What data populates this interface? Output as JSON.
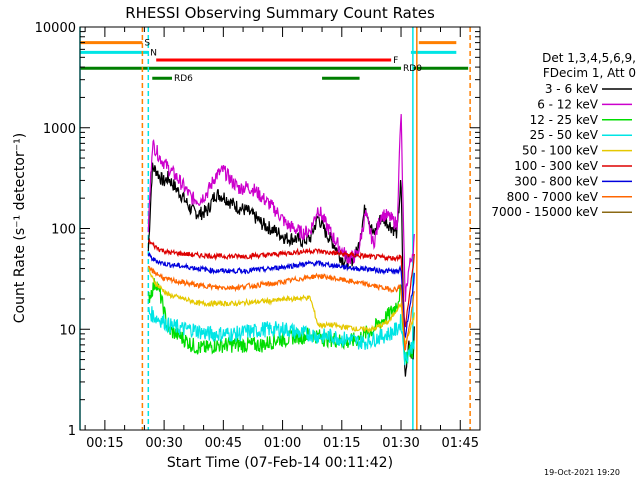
{
  "chart_data": {
    "type": "line",
    "title": "RHESSI Observing Summary Count Rates",
    "xlabel": "Start Time (07-Feb-14 00:11:42)",
    "ylabel": "Count Rate (s⁻¹ detector⁻¹)",
    "yscale": "log",
    "xlim_minutes": [
      8.7,
      110.0
    ],
    "ylim": [
      1,
      10000
    ],
    "x_ticks": [
      "00:15",
      "00:30",
      "00:45",
      "01:00",
      "01:15",
      "01:30",
      "01:45"
    ],
    "y_ticks": [
      "1",
      "10",
      "100",
      "1000",
      "10000"
    ],
    "legend_header": [
      "Det 1,3,4,5,6,9,",
      "FDecim 1, Att 0"
    ],
    "series": [
      {
        "name": "3 - 6 keV",
        "color": "#000000",
        "x": [
          26,
          27,
          28,
          29,
          30,
          31,
          33,
          35,
          37,
          39,
          41,
          43,
          45,
          47,
          49,
          51,
          53,
          55,
          57,
          59,
          61,
          63,
          65,
          67,
          69,
          71,
          73,
          75,
          77,
          79,
          81,
          83,
          85,
          87,
          89,
          90,
          91,
          92,
          93,
          93.5
        ],
        "values": [
          60,
          400,
          380,
          320,
          290,
          320,
          250,
          200,
          150,
          140,
          150,
          220,
          210,
          180,
          160,
          150,
          130,
          110,
          100,
          90,
          80,
          80,
          75,
          80,
          130,
          90,
          70,
          50,
          45,
          60,
          170,
          85,
          130,
          110,
          90,
          300,
          3,
          8,
          5,
          12
        ]
      },
      {
        "name": "6 - 12 keV",
        "color": "#cc00cc",
        "x": [
          26,
          27,
          28,
          29,
          30,
          31,
          33,
          35,
          37,
          39,
          41,
          43,
          45,
          47,
          49,
          51,
          53,
          55,
          57,
          59,
          61,
          63,
          65,
          67,
          69,
          71,
          73,
          75,
          77,
          79,
          81,
          83,
          85,
          87,
          89,
          90,
          91,
          92,
          93,
          93.5
        ],
        "values": [
          100,
          700,
          600,
          500,
          450,
          400,
          330,
          260,
          200,
          190,
          230,
          330,
          380,
          300,
          250,
          260,
          240,
          200,
          170,
          140,
          110,
          100,
          90,
          95,
          160,
          110,
          80,
          60,
          50,
          55,
          140,
          70,
          140,
          130,
          110,
          1500,
          20,
          40,
          60,
          90
        ]
      },
      {
        "name": "12 - 25 keV",
        "color": "#00dd00",
        "x": [
          26,
          27,
          28,
          29,
          30,
          31,
          33,
          35,
          37,
          39,
          41,
          43,
          45,
          47,
          49,
          51,
          53,
          55,
          57,
          59,
          61,
          63,
          65,
          67,
          69,
          71,
          73,
          75,
          77,
          79,
          81,
          83,
          85,
          87,
          89,
          90,
          91,
          92,
          93,
          93.5
        ],
        "values": [
          20,
          25,
          30,
          22,
          15,
          10,
          9,
          8,
          7,
          6.5,
          6.5,
          7,
          7,
          7,
          7,
          7,
          7,
          7,
          7.5,
          8,
          8,
          8.5,
          8.5,
          9,
          8.5,
          8,
          8,
          7.5,
          7.5,
          8,
          9,
          10,
          12,
          14,
          18,
          25,
          5,
          6,
          6,
          8
        ]
      },
      {
        "name": "25 - 50 keV",
        "color": "#00e5e5",
        "x": [
          26,
          27,
          28,
          29,
          30,
          31,
          33,
          35,
          37,
          39,
          41,
          43,
          45,
          47,
          49,
          51,
          53,
          55,
          57,
          59,
          61,
          63,
          65,
          67,
          69,
          71,
          73,
          75,
          77,
          79,
          81,
          83,
          85,
          87,
          89,
          90,
          91,
          92,
          93,
          93.5
        ],
        "values": [
          15,
          14,
          13,
          12.5,
          12,
          11,
          10.5,
          10,
          10,
          9.5,
          9,
          9,
          9,
          9,
          9,
          9.5,
          9.5,
          10,
          10,
          10,
          10,
          9.5,
          9,
          9,
          8.5,
          8.5,
          8.5,
          8,
          8,
          7.5,
          7.5,
          8,
          8.5,
          9,
          10,
          12,
          5,
          6,
          7,
          9
        ]
      },
      {
        "name": "50 - 100 keV",
        "color": "#e5c800",
        "x": [
          26,
          27,
          28,
          29,
          30,
          31,
          33,
          35,
          37,
          39,
          41,
          43,
          45,
          47,
          49,
          51,
          53,
          55,
          57,
          59,
          61,
          63,
          65,
          67,
          69,
          71,
          73,
          75,
          77,
          79,
          81,
          83,
          85,
          87,
          89,
          90,
          91,
          92,
          93,
          93.5
        ],
        "values": [
          40,
          32,
          28,
          26,
          24,
          22,
          21,
          20,
          19,
          18,
          18,
          18,
          18,
          18,
          18,
          18.5,
          18.5,
          19,
          19,
          19.5,
          20,
          20,
          20.5,
          20.5,
          11,
          11,
          11,
          10.5,
          10.5,
          10,
          10,
          10,
          11,
          12,
          16,
          18,
          7,
          9,
          12,
          15
        ]
      },
      {
        "name": "100 - 300 keV",
        "color": "#dd0000",
        "x": [
          26,
          27,
          28,
          29,
          30,
          31,
          33,
          35,
          37,
          39,
          41,
          43,
          45,
          47,
          49,
          51,
          53,
          55,
          57,
          59,
          61,
          63,
          65,
          67,
          69,
          71,
          73,
          75,
          77,
          79,
          81,
          83,
          85,
          87,
          89,
          90,
          91,
          92,
          93,
          93.5
        ],
        "values": [
          75,
          70,
          65,
          62,
          60,
          58,
          57,
          56,
          55,
          54,
          54,
          53,
          53,
          53,
          53,
          53,
          54,
          54,
          55,
          56,
          57,
          58,
          59,
          60,
          60,
          58,
          57,
          56,
          55,
          54,
          53,
          52,
          52,
          51,
          51,
          55,
          10,
          20,
          40,
          65
        ]
      },
      {
        "name": "300 - 800 keV",
        "color": "#0000dd",
        "x": [
          26,
          27,
          28,
          29,
          30,
          31,
          33,
          35,
          37,
          39,
          41,
          43,
          45,
          47,
          49,
          51,
          53,
          55,
          57,
          59,
          61,
          63,
          65,
          67,
          69,
          71,
          73,
          75,
          77,
          79,
          81,
          83,
          85,
          87,
          89,
          90,
          91,
          92,
          93,
          93.5
        ],
        "values": [
          55,
          50,
          48,
          46,
          45,
          44,
          43,
          42,
          41,
          40,
          39,
          38,
          38,
          38,
          38,
          38,
          39,
          39,
          40,
          41,
          42,
          43,
          44,
          45,
          45,
          44,
          43,
          42,
          41,
          40,
          40,
          39,
          38,
          38,
          37,
          40,
          8,
          15,
          25,
          40
        ]
      },
      {
        "name": "800 - 7000 keV",
        "color": "#ff6600",
        "x": [
          26,
          27,
          28,
          29,
          30,
          31,
          33,
          35,
          37,
          39,
          41,
          43,
          45,
          47,
          49,
          51,
          53,
          55,
          57,
          59,
          61,
          63,
          65,
          67,
          69,
          71,
          73,
          75,
          77,
          79,
          81,
          83,
          85,
          87,
          89,
          90,
          91,
          92,
          93,
          93.5
        ],
        "values": [
          40,
          38,
          36,
          34,
          32,
          31,
          30,
          29,
          28,
          27,
          27,
          26,
          26,
          26,
          26,
          27,
          27,
          28,
          28,
          29,
          30,
          31,
          32,
          33,
          34,
          33,
          32,
          31,
          30,
          29,
          28,
          27,
          26,
          25,
          25,
          27,
          6,
          10,
          18,
          28
        ]
      },
      {
        "name": "7000 - 15000 keV",
        "color": "#8b6914",
        "x": [],
        "values": []
      }
    ],
    "flag_bars": [
      {
        "label": "S",
        "color": "#ff7f00",
        "y": 7000,
        "segments": [
          [
            8.7,
            24.5
          ],
          [
            94.5,
            104
          ]
        ]
      },
      {
        "label": "N",
        "color": "#00e5e5",
        "y": 5600,
        "segments": [
          [
            8.7,
            26
          ],
          [
            92.5,
            104
          ]
        ]
      },
      {
        "label": "F",
        "color": "#ff0000",
        "y": 4700,
        "segments": [
          [
            28,
            87.5
          ]
        ]
      },
      {
        "label": "RD0",
        "color": "#007f00",
        "y": 3900,
        "segments": [
          [
            8.7,
            90
          ],
          [
            93,
            107
          ]
        ]
      },
      {
        "label": "RD6",
        "color": "#007f00",
        "y": 3100,
        "segments": [
          [
            27,
            32
          ],
          [
            70,
            79.5
          ]
        ]
      }
    ],
    "vertical_lines": [
      {
        "x": 8.7,
        "color": "#00e5e5",
        "style": "solid"
      },
      {
        "x": 24.5,
        "color": "#ff7f00",
        "style": "dashed"
      },
      {
        "x": 26.0,
        "color": "#00e5e5",
        "style": "dashed"
      },
      {
        "x": 93.0,
        "color": "#00e5e5",
        "style": "solid"
      },
      {
        "x": 94.0,
        "color": "#ff7f00",
        "style": "solid"
      },
      {
        "x": 107.5,
        "color": "#ff7f00",
        "style": "dashed"
      }
    ]
  },
  "footer": {
    "timestamp": "19-Oct-2021 19:20"
  }
}
